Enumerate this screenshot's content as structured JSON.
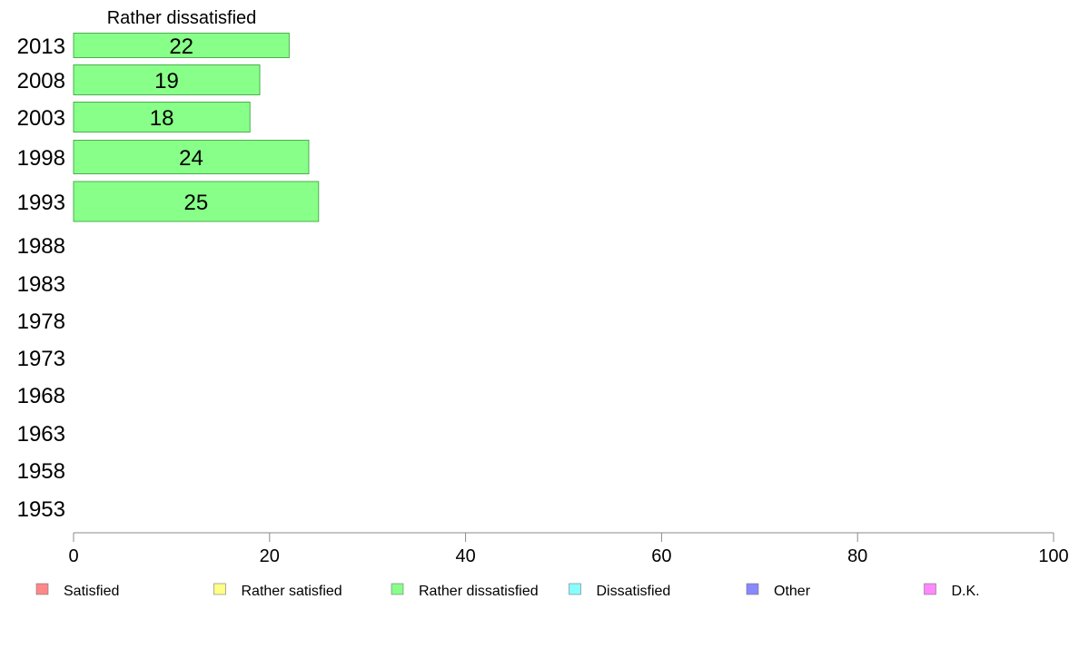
{
  "chart_data": {
    "type": "bar",
    "orientation": "horizontal",
    "title": "Rather dissatisfied",
    "categories": [
      "2013",
      "2008",
      "2003",
      "1998",
      "1993",
      "1988",
      "1983",
      "1978",
      "1973",
      "1968",
      "1963",
      "1958",
      "1953"
    ],
    "series": [
      {
        "name": "Rather dissatisfied",
        "color": "#88ff88",
        "values": [
          22,
          19,
          18,
          24,
          25,
          null,
          null,
          null,
          null,
          null,
          null,
          null,
          null
        ]
      }
    ],
    "xlim": [
      0,
      100
    ],
    "xticks": [
      0,
      20,
      40,
      60,
      80,
      100
    ],
    "legend_position": "bottom",
    "legend": [
      {
        "label": "Satisfied",
        "color": "#ff8888"
      },
      {
        "label": "Rather satisfied",
        "color": "#ffff88"
      },
      {
        "label": "Rather dissatisfied",
        "color": "#88ff88"
      },
      {
        "label": "Dissatisfied",
        "color": "#88ffff"
      },
      {
        "label": "Other",
        "color": "#8888ff"
      },
      {
        "label": "D.K.",
        "color": "#ff88ff"
      }
    ],
    "grid": false
  }
}
